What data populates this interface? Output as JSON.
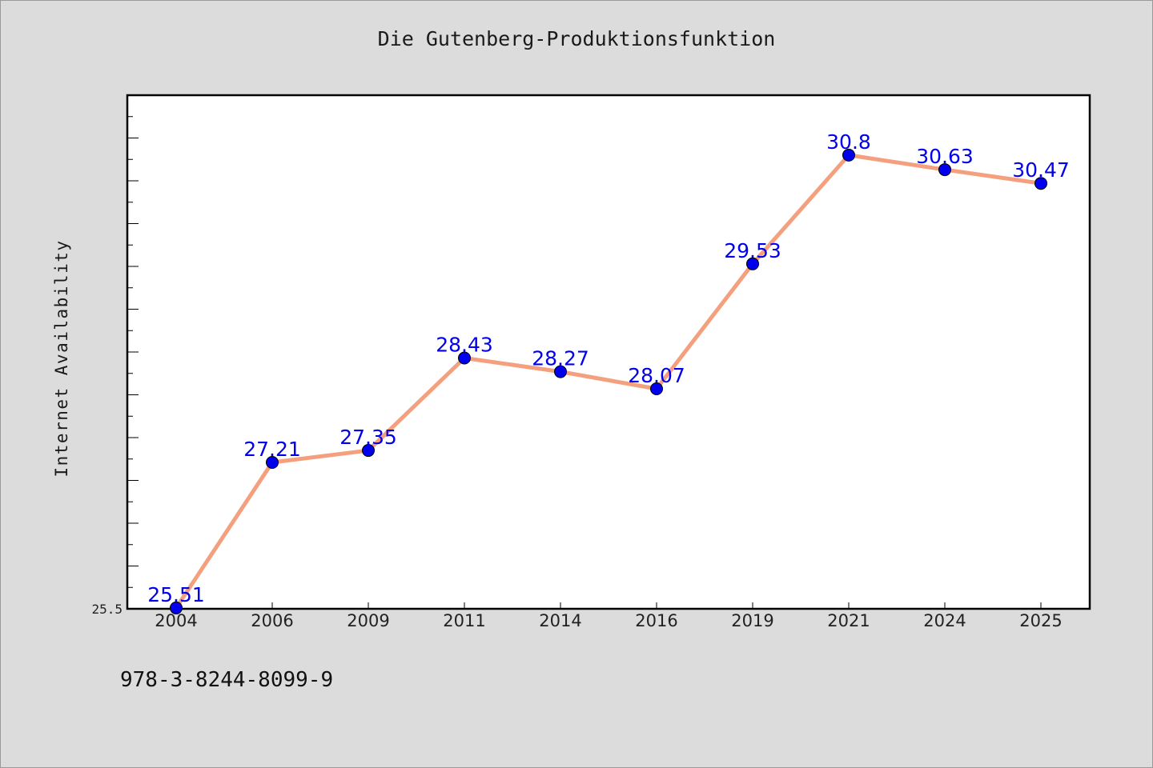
{
  "chart_data": {
    "type": "line",
    "title": "Die Gutenberg-Produktionsfunktion",
    "ylabel": "Internet Availability",
    "xlabel": "",
    "categories": [
      "2004",
      "2006",
      "2009",
      "2011",
      "2014",
      "2016",
      "2019",
      "2021",
      "2024",
      "2025"
    ],
    "series": [
      {
        "values": [
          25.51,
          27.21,
          27.35,
          28.43,
          28.27,
          28.07,
          29.53,
          30.8,
          30.63,
          30.47
        ],
        "labels": [
          "25.51",
          "27.21",
          "27.35",
          "28.43",
          "28.27",
          "28.07",
          "29.53",
          "30.8",
          "30.63",
          "30.47"
        ],
        "line_color": "#f4a07e",
        "marker_color": "#0000ee",
        "label_color": "#0000ee"
      }
    ],
    "ylim": [
      25.5,
      31.5
    ],
    "yticks_labeled": [
      "25.5"
    ],
    "grid": false
  },
  "footer": {
    "code": "978-3-8244-8099-9"
  },
  "colors": {
    "background": "#dcdcdc",
    "plot_area": "#ffffff",
    "axis": "#000000"
  }
}
